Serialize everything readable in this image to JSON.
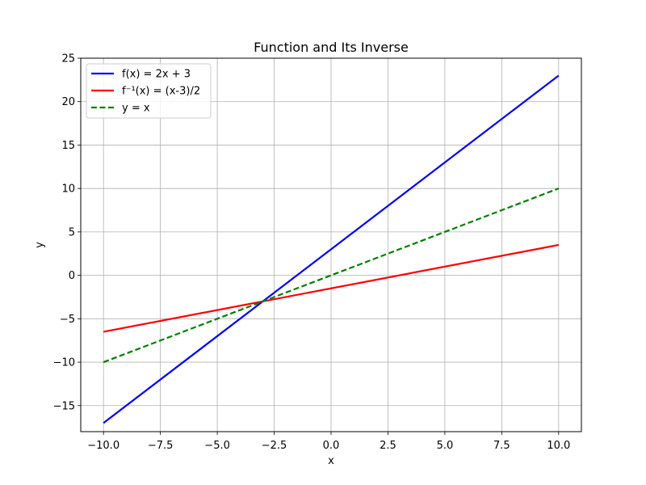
{
  "chart_data": {
    "type": "line",
    "title": "Function and Its Inverse",
    "xlabel": "x",
    "ylabel": "y",
    "xlim": [
      -11.0,
      11.0
    ],
    "ylim": [
      -18.0,
      25.0
    ],
    "xticks": [
      -10.0,
      -7.5,
      -5.0,
      -2.5,
      0.0,
      2.5,
      5.0,
      7.5,
      10.0
    ],
    "xtick_labels": [
      "−10.0",
      "−7.5",
      "−5.0",
      "−2.5",
      "0.0",
      "2.5",
      "5.0",
      "7.5",
      "10.0"
    ],
    "yticks": [
      -15,
      -10,
      -5,
      0,
      5,
      10,
      15,
      20,
      25
    ],
    "ytick_labels": [
      "−15",
      "−10",
      "−5",
      "0",
      "5",
      "10",
      "15",
      "20",
      "25"
    ],
    "grid": true,
    "legend_position": "top-left",
    "series": [
      {
        "name": "f(x) = 2x + 3",
        "color": "#0000ff",
        "style": "solid",
        "x": [
          -10,
          10
        ],
        "y": [
          -17,
          23
        ]
      },
      {
        "name": "f⁻¹(x) = (x-3)/2",
        "color": "#ff0000",
        "style": "solid",
        "x": [
          -10,
          10
        ],
        "y": [
          -6.5,
          3.5
        ]
      },
      {
        "name": "y = x",
        "color": "#008000",
        "style": "dashed",
        "x": [
          -10,
          10
        ],
        "y": [
          -10,
          10
        ]
      }
    ]
  }
}
